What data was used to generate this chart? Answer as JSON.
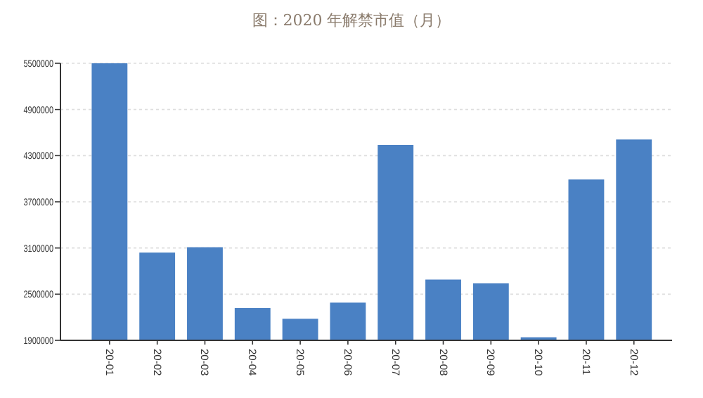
{
  "chart_data": {
    "type": "bar",
    "title": "图：2020 年解禁市值（月）",
    "categories": [
      "20-01",
      "20-02",
      "20-03",
      "20-04",
      "20-05",
      "20-06",
      "20-07",
      "20-08",
      "20-09",
      "20-10",
      "20-11",
      "20-12"
    ],
    "values": [
      5500000,
      3040000,
      3110000,
      2320000,
      2180000,
      2390000,
      4440000,
      2690000,
      2640000,
      1940000,
      3990000,
      4510000
    ],
    "color": "#4a81c4",
    "ylim": [
      1900000,
      5500000
    ],
    "yticks": [
      1900000,
      2500000,
      3100000,
      3700000,
      4300000,
      4900000,
      5500000
    ],
    "grid": "y"
  }
}
